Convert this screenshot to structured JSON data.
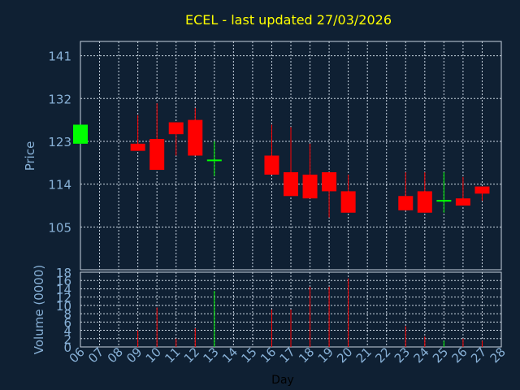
{
  "colors": {
    "background": "#0f2033",
    "up": "#00ff00",
    "down": "#ff0000",
    "title": "#ffff00",
    "axis_text": "#87b0d6",
    "grid": "#c8d4e0"
  },
  "chart_data": {
    "type": "candlestick",
    "title": "ECEL - last updated 27/03/2026",
    "xlabel": "Day",
    "x_ticks": [
      "06",
      "07",
      "08",
      "09",
      "10",
      "11",
      "12",
      "13",
      "14",
      "15",
      "16",
      "17",
      "18",
      "19",
      "20",
      "21",
      "22",
      "23",
      "24",
      "25",
      "26",
      "27",
      "28"
    ],
    "price_panel": {
      "ylabel": "Price",
      "ylim": [
        96,
        144
      ],
      "yticks": [
        105,
        114,
        123,
        132,
        141
      ],
      "candles": [
        {
          "day": 6,
          "open": 122.5,
          "high": 126.5,
          "low": 122.5,
          "close": 126.5
        },
        {
          "day": 9,
          "open": 122.5,
          "high": 128.5,
          "low": 121.0,
          "close": 121.0
        },
        {
          "day": 10,
          "open": 123.5,
          "high": 131.0,
          "low": 117.0,
          "close": 117.0
        },
        {
          "day": 11,
          "open": 127.0,
          "high": 127.0,
          "low": 120.0,
          "close": 124.5
        },
        {
          "day": 12,
          "open": 127.5,
          "high": 130.0,
          "low": 120.0,
          "close": 120.0
        },
        {
          "day": 13,
          "open": 119.0,
          "high": 123.0,
          "low": 115.7,
          "close": 119.0
        },
        {
          "day": 16,
          "open": 120.0,
          "high": 126.5,
          "low": 116.0,
          "close": 116.0
        },
        {
          "day": 17,
          "open": 116.5,
          "high": 126.0,
          "low": 111.5,
          "close": 111.5
        },
        {
          "day": 18,
          "open": 116.0,
          "high": 122.5,
          "low": 111.0,
          "close": 111.0
        },
        {
          "day": 19,
          "open": 116.5,
          "high": 116.5,
          "low": 107.0,
          "close": 112.5
        },
        {
          "day": 20,
          "open": 112.5,
          "high": 116.0,
          "low": 108.0,
          "close": 108.0
        },
        {
          "day": 23,
          "open": 111.5,
          "high": 116.5,
          "low": 108.5,
          "close": 108.5
        },
        {
          "day": 24,
          "open": 112.5,
          "high": 116.5,
          "low": 108.0,
          "close": 108.0
        },
        {
          "day": 25,
          "open": 110.5,
          "high": 116.5,
          "low": 108.0,
          "close": 110.5
        },
        {
          "day": 26,
          "open": 111.0,
          "high": 115.5,
          "low": 109.5,
          "close": 109.5
        },
        {
          "day": 27,
          "open": 113.5,
          "high": 113.5,
          "low": 110.5,
          "close": 112.0
        }
      ]
    },
    "volume_panel": {
      "ylabel": "Volume (0000)",
      "ylim": [
        0,
        18
      ],
      "yticks": [
        0,
        2,
        4,
        6,
        8,
        10,
        12,
        14,
        16,
        18
      ],
      "bars": [
        {
          "day": 6,
          "value": 0,
          "direction": "up"
        },
        {
          "day": 9,
          "value": 4,
          "direction": "down"
        },
        {
          "day": 10,
          "value": 9.5,
          "direction": "down"
        },
        {
          "day": 11,
          "value": 2,
          "direction": "down"
        },
        {
          "day": 12,
          "value": 4.5,
          "direction": "down"
        },
        {
          "day": 13,
          "value": 13.5,
          "direction": "up"
        },
        {
          "day": 16,
          "value": 9,
          "direction": "down"
        },
        {
          "day": 17,
          "value": 9,
          "direction": "down"
        },
        {
          "day": 18,
          "value": 14.5,
          "direction": "down"
        },
        {
          "day": 19,
          "value": 14.5,
          "direction": "down"
        },
        {
          "day": 20,
          "value": 16.5,
          "direction": "down"
        },
        {
          "day": 23,
          "value": 5,
          "direction": "down"
        },
        {
          "day": 24,
          "value": 2.5,
          "direction": "down"
        },
        {
          "day": 25,
          "value": 1.5,
          "direction": "up"
        },
        {
          "day": 26,
          "value": 2,
          "direction": "down"
        },
        {
          "day": 27,
          "value": 1.5,
          "direction": "down"
        }
      ]
    }
  }
}
